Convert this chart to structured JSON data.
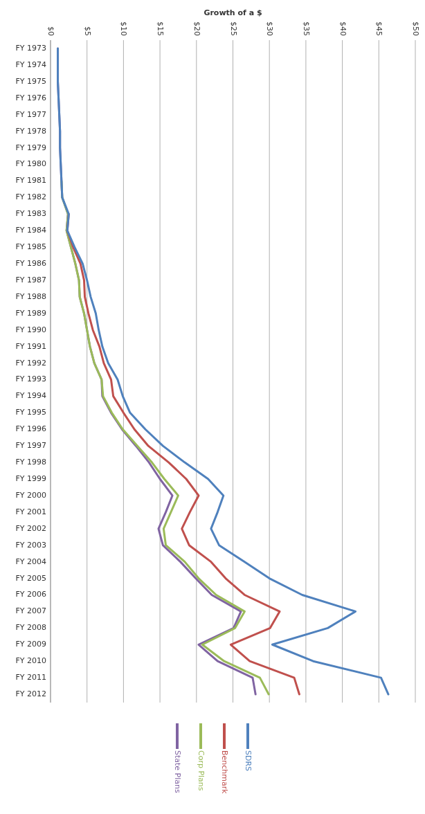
{
  "chart_data": {
    "type": "line",
    "orientation": "horizontal",
    "title": "Growth of a $",
    "categories": [
      "FY 1973",
      "FY 1974",
      "FY 1975",
      "FY 1976",
      "FY 1977",
      "FY 1978",
      "FY 1979",
      "FY 1980",
      "FY 1981",
      "FY 1982",
      "FY 1983",
      "FY 1984",
      "FY 1985",
      "FY 1986",
      "FY 1987",
      "FY 1988",
      "FY 1989",
      "FY 1990",
      "FY 1991",
      "FY 1992",
      "FY 1993",
      "FY 1994",
      "FY 1995",
      "FY 1996",
      "FY 1997",
      "FY 1998",
      "FY 1999",
      "FY 2000",
      "FY 2001",
      "FY 2002",
      "FY 2003",
      "FY 2004",
      "FY 2005",
      "FY 2006",
      "FY 2007",
      "FY 2008",
      "FY 2009",
      "FY 2010",
      "FY 2011",
      "FY 2012"
    ],
    "xlim": [
      0,
      50
    ],
    "xticks": [
      {
        "value": 0,
        "label": "$0"
      },
      {
        "value": 5,
        "label": "$5"
      },
      {
        "value": 10,
        "label": "$10"
      },
      {
        "value": 15,
        "label": "$15"
      },
      {
        "value": 20,
        "label": "$20"
      },
      {
        "value": 25,
        "label": "$25"
      },
      {
        "value": 30,
        "label": "$30"
      },
      {
        "value": 35,
        "label": "$35"
      },
      {
        "value": 40,
        "label": "$40"
      },
      {
        "value": 45,
        "label": "$45"
      },
      {
        "value": 50,
        "label": "$50"
      }
    ],
    "grid": "x",
    "legend": "bottom",
    "marker": "none",
    "line_style": "solid",
    "series": [
      {
        "name": "State Plans",
        "color": "#8064a2",
        "values": [
          1.0,
          1.0,
          1.0,
          1.1,
          1.2,
          1.3,
          1.3,
          1.4,
          1.5,
          1.6,
          2.4,
          2.2,
          2.8,
          3.4,
          3.9,
          4.0,
          4.6,
          5.0,
          5.4,
          6.0,
          7.0,
          7.1,
          8.3,
          9.8,
          11.7,
          13.5,
          15.0,
          16.7,
          15.8,
          14.8,
          15.4,
          17.8,
          19.9,
          22.1,
          26.1,
          25.1,
          20.3,
          22.9,
          27.7,
          28.1
        ]
      },
      {
        "name": "Corp Plans",
        "color": "#9bbb59",
        "values": [
          null,
          null,
          null,
          null,
          null,
          null,
          null,
          null,
          1.5,
          1.6,
          2.4,
          2.2,
          2.8,
          3.4,
          3.9,
          4.0,
          4.6,
          5.0,
          5.4,
          6.0,
          7.0,
          7.2,
          8.4,
          9.9,
          11.9,
          13.9,
          15.6,
          17.5,
          16.5,
          15.5,
          15.8,
          18.4,
          20.3,
          22.7,
          26.6,
          25.3,
          20.8,
          23.8,
          28.7,
          29.9
        ]
      },
      {
        "name": "Benchmark",
        "color": "#c0504d",
        "values": [
          null,
          null,
          null,
          null,
          null,
          null,
          null,
          null,
          null,
          null,
          2.5,
          2.3,
          3.1,
          4.1,
          4.6,
          4.7,
          5.2,
          5.8,
          6.7,
          7.3,
          8.3,
          8.6,
          10.0,
          11.5,
          13.4,
          16.2,
          18.6,
          20.3,
          19.1,
          18.0,
          19.0,
          22.0,
          24.0,
          26.6,
          31.4,
          30.1,
          24.7,
          27.3,
          33.4,
          34.1
        ]
      },
      {
        "name": "SDRS",
        "color": "#4f81bd",
        "values": [
          1.0,
          1.0,
          1.0,
          1.1,
          1.2,
          1.3,
          1.3,
          1.4,
          1.5,
          1.6,
          2.5,
          2.3,
          3.3,
          4.4,
          5.0,
          5.5,
          6.2,
          6.6,
          7.1,
          7.9,
          9.2,
          9.9,
          10.9,
          13.0,
          15.4,
          18.4,
          21.6,
          23.7,
          22.9,
          22.0,
          23.1,
          26.6,
          30.0,
          34.5,
          41.8,
          38.0,
          30.4,
          36.0,
          45.3,
          46.3
        ]
      }
    ]
  }
}
